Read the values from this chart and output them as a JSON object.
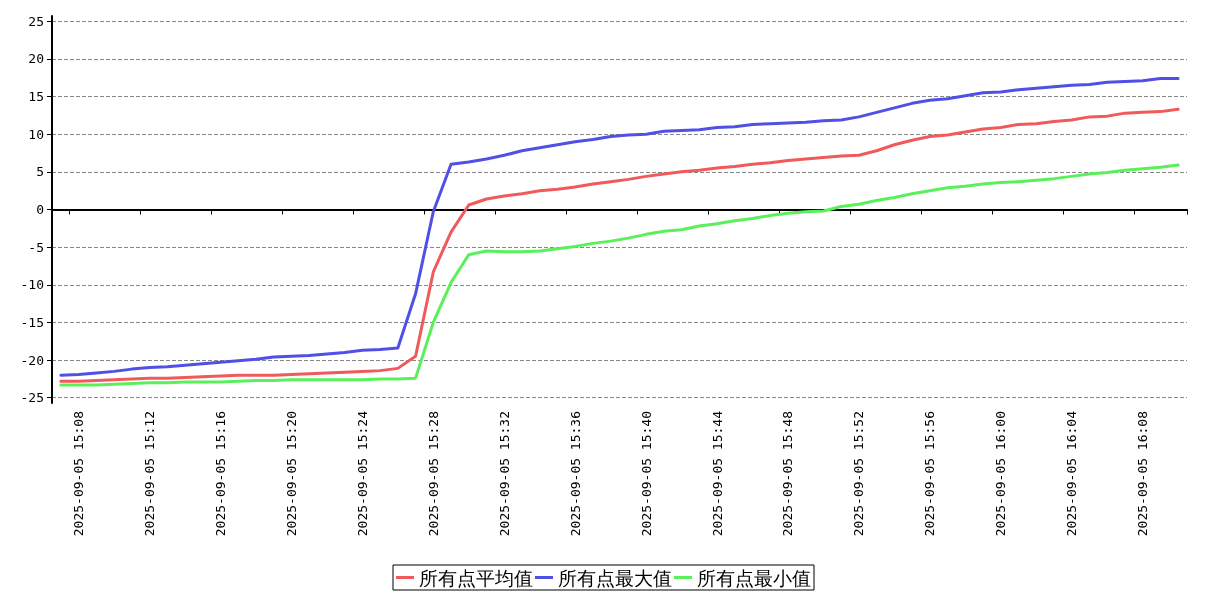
{
  "chart_data": {
    "type": "line",
    "categories": [
      null,
      "2025-09-05 15:08",
      null,
      null,
      null,
      "2025-09-05 15:12",
      null,
      null,
      null,
      "2025-09-05 15:16",
      null,
      null,
      null,
      "2025-09-05 15:20",
      null,
      null,
      null,
      "2025-09-05 15:24",
      null,
      null,
      null,
      "2025-09-05 15:28",
      null,
      null,
      null,
      "2025-09-05 15:32",
      null,
      null,
      null,
      "2025-09-05 15:36",
      null,
      null,
      null,
      "2025-09-05 15:40",
      null,
      null,
      null,
      "2025-09-05 15:44",
      null,
      null,
      null,
      "2025-09-05 15:48",
      null,
      null,
      null,
      "2025-09-05 15:52",
      null,
      null,
      null,
      "2025-09-05 15:56",
      null,
      null,
      null,
      "2025-09-05 16:00",
      null,
      null,
      null,
      "2025-09-05 16:04",
      null,
      null,
      null,
      "2025-09-05 16:08",
      null,
      null
    ],
    "series": [
      {
        "name": "所有点平均值",
        "color": "#f05a5a",
        "values": [
          -22.8,
          -22.8,
          -22.7,
          -22.6,
          -22.5,
          -22.4,
          -22.4,
          -22.3,
          -22.2,
          -22.1,
          -22.0,
          -22.0,
          -22.0,
          -21.9,
          -21.8,
          -21.7,
          -21.6,
          -21.5,
          -21.4,
          -21.1,
          -19.5,
          -8.3,
          -3.0,
          0.6,
          1.4,
          1.8,
          2.1,
          2.5,
          2.7,
          3.0,
          3.4,
          3.7,
          4.0,
          4.4,
          4.7,
          5.0,
          5.2,
          5.5,
          5.7,
          6.0,
          6.2,
          6.5,
          6.7,
          6.9,
          7.1,
          7.2,
          7.8,
          8.6,
          9.2,
          9.7,
          9.9,
          10.3,
          10.7,
          10.9,
          11.3,
          11.4,
          11.7,
          11.9,
          12.3,
          12.4,
          12.8,
          12.9,
          13.0,
          13.3
        ]
      },
      {
        "name": "所有点最大值",
        "color": "#5050e6",
        "values": [
          -22.0,
          -21.9,
          -21.7,
          -21.5,
          -21.2,
          -21.0,
          -20.9,
          -20.7,
          -20.5,
          -20.3,
          -20.1,
          -19.9,
          -19.6,
          -19.5,
          -19.4,
          -19.2,
          -19.0,
          -18.7,
          -18.6,
          -18.4,
          -11.2,
          -0.3,
          6.0,
          6.3,
          6.7,
          7.2,
          7.8,
          8.2,
          8.6,
          9.0,
          9.3,
          9.7,
          9.9,
          10.0,
          10.4,
          10.5,
          10.6,
          10.9,
          11.0,
          11.3,
          11.4,
          11.5,
          11.6,
          11.8,
          11.9,
          12.3,
          12.9,
          13.5,
          14.1,
          14.5,
          14.7,
          15.1,
          15.5,
          15.6,
          15.9,
          16.1,
          16.3,
          16.5,
          16.6,
          16.9,
          17.0,
          17.1,
          17.4,
          17.4
        ]
      },
      {
        "name": "所有点最小值",
        "color": "#5af05a",
        "values": [
          -23.3,
          -23.3,
          -23.3,
          -23.2,
          -23.1,
          -23.0,
          -23.0,
          -22.9,
          -22.9,
          -22.9,
          -22.8,
          -22.7,
          -22.7,
          -22.6,
          -22.6,
          -22.6,
          -22.6,
          -22.6,
          -22.5,
          -22.5,
          -22.4,
          -15.0,
          -9.7,
          -6.0,
          -5.5,
          -5.6,
          -5.6,
          -5.5,
          -5.2,
          -4.9,
          -4.5,
          -4.2,
          -3.8,
          -3.3,
          -2.9,
          -2.7,
          -2.2,
          -1.9,
          -1.5,
          -1.2,
          -0.8,
          -0.5,
          -0.3,
          -0.2,
          0.4,
          0.7,
          1.2,
          1.6,
          2.1,
          2.5,
          2.9,
          3.1,
          3.4,
          3.6,
          3.7,
          3.9,
          4.1,
          4.4,
          4.7,
          4.9,
          5.2,
          5.4,
          5.6,
          5.9
        ]
      }
    ],
    "ylim": [
      -25.7,
      25.7
    ],
    "yticks": [
      -25,
      -20,
      -15,
      -10,
      -5,
      0,
      5,
      10,
      15,
      20,
      25
    ],
    "grid": "y",
    "legend": "bottom",
    "marker": "none",
    "line_style": "solid"
  }
}
